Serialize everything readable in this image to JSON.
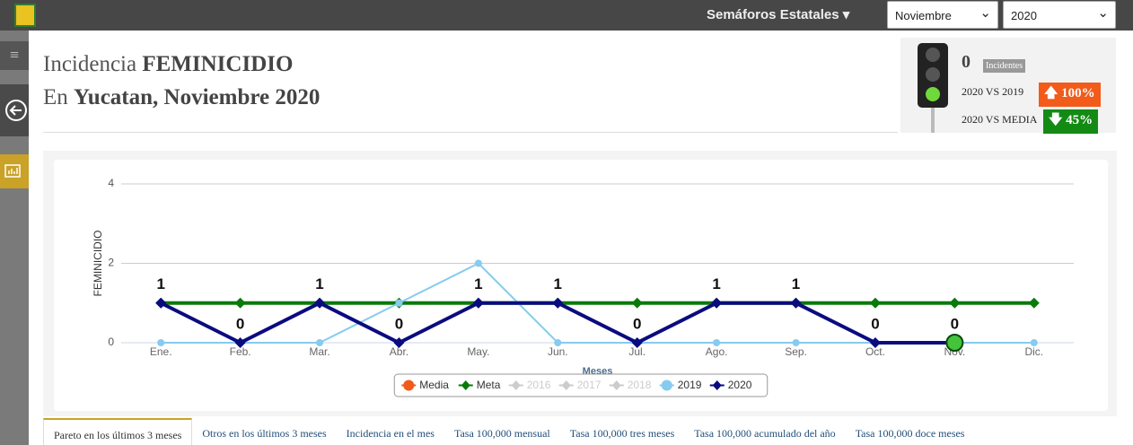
{
  "topbar": {
    "menu": "Semáforos Estatales",
    "month": "Noviembre",
    "year": "2020"
  },
  "header": {
    "line1": {
      "plain": "Incidencia",
      "bold": "FEMINICIDIO"
    },
    "line2": {
      "plain": "En",
      "bold": "Yucatan, Noviembre 2020"
    }
  },
  "semaforo": {
    "count": "0",
    "count_label": "Incidentes",
    "vs1_label": "2020 VS 2019",
    "vs1_value": "100%",
    "vs2_label": "2020 VS MEDIA",
    "vs2_value": "45%"
  },
  "chart_data": {
    "type": "line",
    "y_label": "FEMINICIDIO",
    "x_label": "Meses",
    "categories": [
      "Ene.",
      "Feb.",
      "Mar.",
      "Abr.",
      "May.",
      "Jun.",
      "Jul.",
      "Ago.",
      "Sep.",
      "Oct.",
      "Nov.",
      "Dic."
    ],
    "ylim": [
      0,
      4
    ],
    "yticks": [
      0,
      2,
      4
    ],
    "grid": true,
    "legend": "bottom",
    "series": [
      {
        "name": "Media",
        "color": "#f05a1a",
        "marker": "circle",
        "line": false,
        "values": [
          1,
          1,
          1,
          1,
          1,
          1,
          1,
          1,
          1,
          1,
          1,
          1
        ]
      },
      {
        "name": "Meta",
        "color": "#0a7a0a",
        "marker": "diamond",
        "line": true,
        "values": [
          1,
          1,
          1,
          1,
          1,
          1,
          1,
          1,
          1,
          1,
          1,
          1
        ]
      },
      {
        "name": "2016",
        "color": "#cccccc",
        "hidden": true
      },
      {
        "name": "2017",
        "color": "#cccccc",
        "hidden": true
      },
      {
        "name": "2018",
        "color": "#cccccc",
        "hidden": true
      },
      {
        "name": "2019",
        "color": "#87cbef",
        "marker": "circle",
        "line": true,
        "values": [
          0,
          0,
          0,
          1,
          2,
          0,
          0,
          0,
          0,
          0,
          0,
          0
        ]
      },
      {
        "name": "2020",
        "color": "#0b0b80",
        "marker": "diamond",
        "line": true,
        "data_labels": true,
        "values": [
          1,
          0,
          1,
          0,
          1,
          1,
          0,
          1,
          1,
          0,
          0,
          null
        ]
      }
    ]
  },
  "tabs": [
    "Pareto en los últimos 3 meses",
    "Otros en los últimos 3 meses",
    "Incidencia en el mes",
    "Tasa 100,000 mensual",
    "Tasa 100,000 tres meses",
    "Tasa 100,000 acumulado del año",
    "Tasa 100,000 doce meses"
  ]
}
